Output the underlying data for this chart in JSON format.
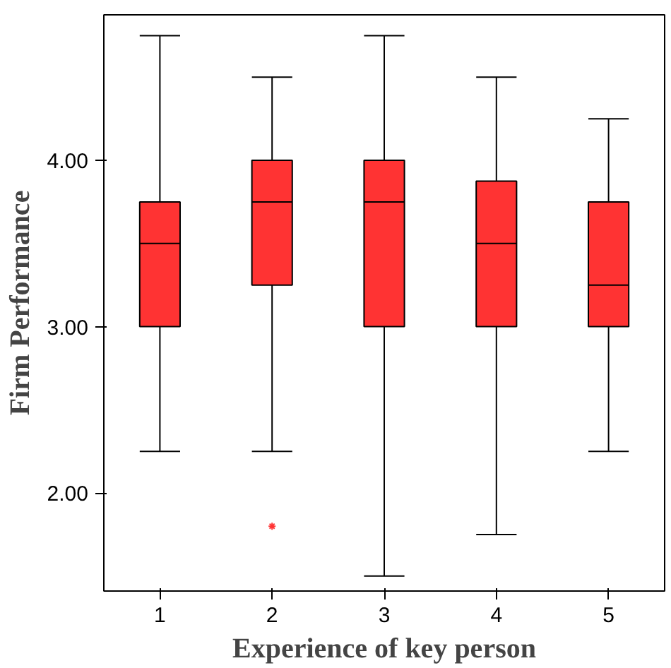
{
  "chart_data": {
    "type": "box",
    "xlabel": "Experience of key person",
    "ylabel": "Firm Performance",
    "categories": [
      "1",
      "2",
      "3",
      "4",
      "5"
    ],
    "color": "#ff3333",
    "boxes": [
      {
        "low": 2.25,
        "q1": 3.0,
        "median": 3.5,
        "q3": 3.75,
        "high": 4.75
      },
      {
        "low": 2.25,
        "q1": 3.25,
        "median": 3.75,
        "q3": 4.0,
        "high": 4.5,
        "outliers": [
          1.8
        ]
      },
      {
        "low": 1.5,
        "q1": 3.0,
        "median": 3.75,
        "q3": 4.0,
        "high": 4.75
      },
      {
        "low": 1.75,
        "q1": 3.0,
        "median": 3.5,
        "q3": 3.875,
        "high": 4.5
      },
      {
        "low": 2.25,
        "q1": 3.0,
        "median": 3.25,
        "q3": 3.75,
        "high": 4.25
      }
    ],
    "ylim": [
      1.41,
      4.875
    ],
    "yticks": [
      {
        "value": 2,
        "label": "2.00"
      },
      {
        "value": 3,
        "label": "3.00"
      },
      {
        "value": 4,
        "label": "4.00"
      }
    ],
    "grid": false
  }
}
